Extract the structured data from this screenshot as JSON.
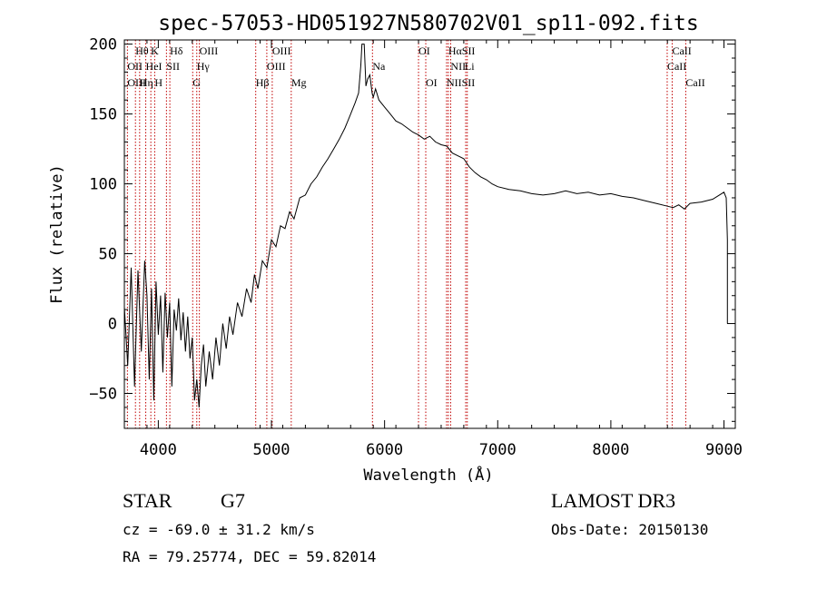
{
  "chart_data": {
    "type": "line",
    "title": "spec-57053-HD051927N580702V01_sp11-092.fits",
    "xlabel": "Wavelength (Å)",
    "ylabel": "Flux (relative)",
    "xlim": [
      3700,
      9100
    ],
    "ylim": [
      -75,
      203
    ],
    "xticks": [
      4000,
      5000,
      6000,
      7000,
      8000,
      9000
    ],
    "yticks": [
      -50,
      0,
      50,
      100,
      150,
      200
    ],
    "grid": false,
    "series": [
      {
        "points": [
          [
            3700,
            12
          ],
          [
            3730,
            -30
          ],
          [
            3760,
            40
          ],
          [
            3790,
            -45
          ],
          [
            3820,
            38
          ],
          [
            3850,
            -20
          ],
          [
            3880,
            45
          ],
          [
            3900,
            20
          ],
          [
            3920,
            -40
          ],
          [
            3940,
            25
          ],
          [
            3960,
            -55
          ],
          [
            3980,
            30
          ],
          [
            4000,
            -8
          ],
          [
            4020,
            20
          ],
          [
            4040,
            -35
          ],
          [
            4060,
            22
          ],
          [
            4080,
            -10
          ],
          [
            4100,
            15
          ],
          [
            4120,
            -45
          ],
          [
            4140,
            10
          ],
          [
            4160,
            -5
          ],
          [
            4180,
            18
          ],
          [
            4200,
            -12
          ],
          [
            4220,
            8
          ],
          [
            4240,
            -20
          ],
          [
            4260,
            5
          ],
          [
            4280,
            -25
          ],
          [
            4300,
            -10
          ],
          [
            4320,
            -55
          ],
          [
            4340,
            -40
          ],
          [
            4360,
            -60
          ],
          [
            4380,
            -30
          ],
          [
            4400,
            -15
          ],
          [
            4420,
            -45
          ],
          [
            4450,
            -20
          ],
          [
            4480,
            -40
          ],
          [
            4510,
            -10
          ],
          [
            4540,
            -30
          ],
          [
            4570,
            0
          ],
          [
            4600,
            -18
          ],
          [
            4630,
            5
          ],
          [
            4660,
            -8
          ],
          [
            4700,
            15
          ],
          [
            4740,
            5
          ],
          [
            4780,
            25
          ],
          [
            4820,
            15
          ],
          [
            4850,
            35
          ],
          [
            4880,
            25
          ],
          [
            4920,
            45
          ],
          [
            4960,
            40
          ],
          [
            5000,
            60
          ],
          [
            5040,
            55
          ],
          [
            5080,
            70
          ],
          [
            5120,
            68
          ],
          [
            5160,
            80
          ],
          [
            5200,
            75
          ],
          [
            5250,
            90
          ],
          [
            5300,
            92
          ],
          [
            5350,
            100
          ],
          [
            5400,
            105
          ],
          [
            5450,
            112
          ],
          [
            5500,
            118
          ],
          [
            5550,
            125
          ],
          [
            5600,
            132
          ],
          [
            5650,
            140
          ],
          [
            5700,
            150
          ],
          [
            5740,
            158
          ],
          [
            5770,
            165
          ],
          [
            5790,
            185
          ],
          [
            5800,
            200
          ],
          [
            5820,
            200
          ],
          [
            5835,
            170
          ],
          [
            5850,
            175
          ],
          [
            5870,
            178
          ],
          [
            5890,
            165
          ],
          [
            5900,
            162
          ],
          [
            5920,
            168
          ],
          [
            5950,
            160
          ],
          [
            6000,
            155
          ],
          [
            6050,
            150
          ],
          [
            6100,
            145
          ],
          [
            6150,
            143
          ],
          [
            6200,
            140
          ],
          [
            6250,
            137
          ],
          [
            6300,
            135
          ],
          [
            6350,
            132
          ],
          [
            6400,
            134
          ],
          [
            6450,
            130
          ],
          [
            6500,
            128
          ],
          [
            6550,
            127
          ],
          [
            6600,
            122
          ],
          [
            6650,
            120
          ],
          [
            6700,
            118
          ],
          [
            6750,
            112
          ],
          [
            6800,
            108
          ],
          [
            6850,
            105
          ],
          [
            6900,
            103
          ],
          [
            6950,
            100
          ],
          [
            7000,
            98
          ],
          [
            7100,
            96
          ],
          [
            7200,
            95
          ],
          [
            7300,
            93
          ],
          [
            7400,
            92
          ],
          [
            7500,
            93
          ],
          [
            7600,
            95
          ],
          [
            7700,
            93
          ],
          [
            7800,
            94
          ],
          [
            7900,
            92
          ],
          [
            8000,
            93
          ],
          [
            8100,
            91
          ],
          [
            8200,
            90
          ],
          [
            8300,
            88
          ],
          [
            8400,
            86
          ],
          [
            8500,
            84
          ],
          [
            8550,
            83
          ],
          [
            8600,
            85
          ],
          [
            8650,
            82
          ],
          [
            8700,
            86
          ],
          [
            8800,
            87
          ],
          [
            8900,
            89
          ],
          [
            9000,
            94
          ],
          [
            9020,
            90
          ],
          [
            9030,
            60
          ],
          [
            9030,
            0
          ]
        ]
      }
    ],
    "spectral_lines": [
      {
        "label": "Hθ",
        "x": 3798,
        "row": 0
      },
      {
        "label": "K",
        "x": 3934,
        "row": 0
      },
      {
        "label": "Hδ",
        "x": 4102,
        "row": 0
      },
      {
        "label": "OIII",
        "x": 4363,
        "row": 0
      },
      {
        "label": "OIII",
        "x": 5007,
        "row": 0
      },
      {
        "label": "OI",
        "x": 6300,
        "row": 0
      },
      {
        "label": "HαSII",
        "x": 6563,
        "row": 0
      },
      {
        "label": "CaII",
        "x": 8542,
        "row": 0
      },
      {
        "label": "OII",
        "x": 3727,
        "row": 1
      },
      {
        "label": "HeI",
        "x": 3889,
        "row": 1
      },
      {
        "label": "SII",
        "x": 4072,
        "row": 1
      },
      {
        "label": "Hγ",
        "x": 4340,
        "row": 1
      },
      {
        "label": "OIII",
        "x": 4959,
        "row": 1
      },
      {
        "label": "Na",
        "x": 5893,
        "row": 1
      },
      {
        "label": "NII",
        "x": 6584,
        "row": 1
      },
      {
        "label": "Li",
        "x": 6708,
        "row": 1
      },
      {
        "label": "CaII",
        "x": 8498,
        "row": 1
      },
      {
        "label": "OIII",
        "x": 3727,
        "row": 2
      },
      {
        "label": "Hη",
        "x": 3835,
        "row": 2
      },
      {
        "label": "H",
        "x": 3968,
        "row": 2
      },
      {
        "label": "G",
        "x": 4304,
        "row": 2
      },
      {
        "label": "Hβ",
        "x": 4861,
        "row": 2
      },
      {
        "label": "Mg",
        "x": 5175,
        "row": 2
      },
      {
        "label": "OI",
        "x": 6364,
        "row": 2
      },
      {
        "label": "NIISII",
        "x": 6548,
        "row": 2
      },
      {
        "label": "CaII",
        "x": 8662,
        "row": 2
      }
    ],
    "marker_lines": [
      3727,
      3798,
      3835,
      3889,
      3934,
      3968,
      4072,
      4102,
      4304,
      4340,
      4363,
      4861,
      4959,
      5007,
      5175,
      5893,
      6300,
      6364,
      6548,
      6563,
      6584,
      6717,
      6731,
      8498,
      8542,
      8662
    ]
  },
  "footer": {
    "object_class": "STAR",
    "subclass": "G7",
    "survey": "LAMOST DR3",
    "redshift": "cz = -69.0 ± 31.2 km/s",
    "obs_date": "Obs-Date: 20150130",
    "coords": "RA =  79.25774, DEC =  59.82014"
  },
  "colors": {
    "spectrum": "#000000",
    "marker": "#c00000"
  }
}
